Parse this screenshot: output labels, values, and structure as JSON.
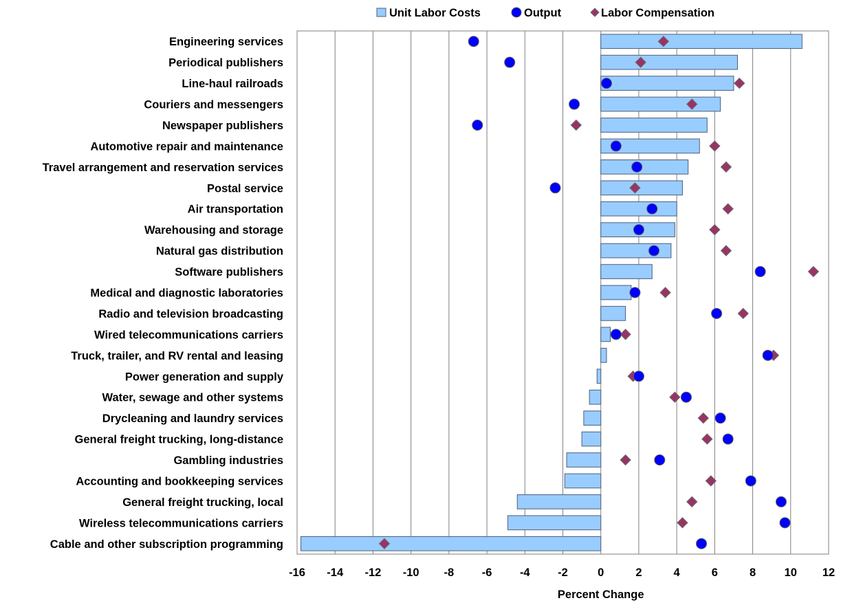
{
  "chart_data": {
    "type": "bar",
    "orientation": "horizontal",
    "title": "",
    "xlabel": "Percent Change",
    "ylabel": "",
    "xlim": [
      -16,
      12
    ],
    "x_ticks": [
      "-16",
      "-14",
      "-12",
      "-10",
      "-8",
      "-6",
      "-4",
      "-2",
      "0",
      "2",
      "4",
      "6",
      "8",
      "10",
      "12"
    ],
    "grid": "vertical",
    "legend_position": "top",
    "categories": [
      "Engineering services",
      "Periodical publishers",
      "Line-haul railroads",
      "Couriers and messengers",
      "Newspaper publishers",
      "Automotive repair and maintenance",
      "Travel arrangement and reservation services",
      "Postal service",
      "Air transportation",
      "Warehousing and storage",
      "Natural gas distribution",
      "Software publishers",
      "Medical and diagnostic laboratories",
      "Radio and television broadcasting",
      "Wired telecommunications carriers",
      "Truck, trailer, and RV rental and leasing",
      "Power generation and supply",
      "Water, sewage and other systems",
      "Drycleaning and laundry services",
      "General freight trucking, long-distance",
      "Gambling industries ",
      "Accounting and bookkeeping services",
      "General freight trucking, local ",
      "Wireless telecommunications carriers",
      "Cable and other subscription programming"
    ],
    "series": [
      {
        "name": "Unit Labor Costs",
        "kind": "bar",
        "color": "#99CCFF",
        "values": [
          10.6,
          7.2,
          7.0,
          6.3,
          5.6,
          5.2,
          4.6,
          4.3,
          4.0,
          3.9,
          3.7,
          2.7,
          1.6,
          1.3,
          0.5,
          0.3,
          -0.2,
          -0.6,
          -0.9,
          -1.0,
          -1.8,
          -1.9,
          -4.4,
          -4.9,
          -15.8
        ]
      },
      {
        "name": "Output",
        "kind": "circle",
        "color": "#0000FF",
        "values": [
          -6.7,
          -4.8,
          0.3,
          -1.4,
          -6.5,
          0.8,
          1.9,
          -2.4,
          2.7,
          2.0,
          2.8,
          8.4,
          1.8,
          6.1,
          0.8,
          8.8,
          2.0,
          4.5,
          6.3,
          6.7,
          3.1,
          7.9,
          9.5,
          9.7,
          5.3
        ]
      },
      {
        "name": "Labor Compensation",
        "kind": "diamond",
        "color": "#993366",
        "values": [
          3.3,
          2.1,
          7.3,
          4.8,
          -1.3,
          6.0,
          6.6,
          1.8,
          6.7,
          6.0,
          6.6,
          11.2,
          3.4,
          7.5,
          1.3,
          9.1,
          1.7,
          3.9,
          5.4,
          5.6,
          1.3,
          5.8,
          4.8,
          4.3,
          -11.4
        ]
      }
    ]
  }
}
